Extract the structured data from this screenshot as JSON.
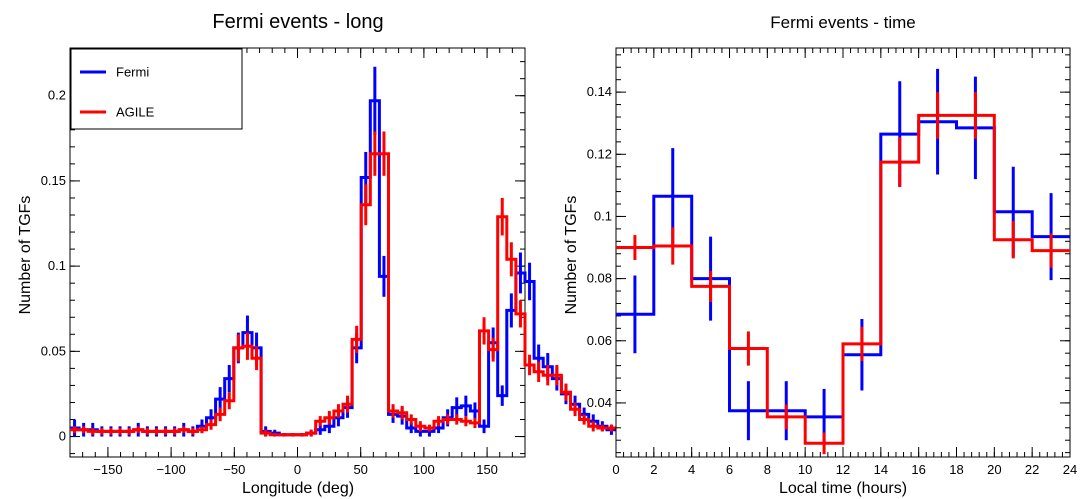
{
  "chart_data": [
    {
      "type": "histogram",
      "title": "Fermi events - long",
      "xlabel": "Longitude (deg)",
      "ylabel": "Number of TGFs",
      "xlim": [
        -180,
        180
      ],
      "ylim": [
        -0.012,
        0.228
      ],
      "xticks": [
        -150,
        -100,
        -50,
        0,
        50,
        100,
        150
      ],
      "xtick_labels": [
        "−150",
        "−100",
        "−50",
        "0",
        "50",
        "100",
        "150"
      ],
      "yticks": [
        0,
        0.05,
        0.1,
        0.15,
        0.2
      ],
      "ytick_labels": [
        "0",
        "0.05",
        "0.1",
        "0.15",
        "0.2"
      ],
      "bin_width": 7.2,
      "legend": {
        "placement": "top-left",
        "entries": [
          "Fermi",
          "AGILE"
        ]
      },
      "series": [
        {
          "name": "Fermi",
          "color": "#0000ff",
          "values": [
            0.005,
            0.004,
            0.004,
            0.003,
            0.003,
            0.003,
            0.003,
            0.004,
            0.003,
            0.003,
            0.003,
            0.003,
            0.004,
            0.003,
            0.006,
            0.011,
            0.022,
            0.034,
            0.052,
            0.061,
            0.052,
            0.003,
            0.002,
            0.001,
            0.001,
            0.001,
            0.002,
            0.004,
            0.006,
            0.011,
            0.017,
            0.052,
            0.152,
            0.197,
            0.094,
            0.013,
            0.012,
            0.005,
            0.003,
            0.003,
            0.005,
            0.011,
            0.017,
            0.018,
            0.015,
            0.006,
            0.055,
            0.024,
            0.074,
            0.096,
            0.091,
            0.046,
            0.041,
            0.034,
            0.025,
            0.019,
            0.013,
            0.009,
            0.006,
            0.004
          ],
          "errors": [
            0.005,
            0.004,
            0.004,
            0.003,
            0.003,
            0.003,
            0.003,
            0.004,
            0.003,
            0.003,
            0.003,
            0.003,
            0.004,
            0.003,
            0.004,
            0.005,
            0.007,
            0.008,
            0.009,
            0.01,
            0.009,
            0.003,
            0.002,
            0.001,
            0.001,
            0.001,
            0.002,
            0.003,
            0.004,
            0.005,
            0.006,
            0.009,
            0.015,
            0.02,
            0.012,
            0.005,
            0.005,
            0.003,
            0.003,
            0.003,
            0.003,
            0.005,
            0.006,
            0.006,
            0.005,
            0.004,
            0.009,
            0.006,
            0.01,
            0.012,
            0.011,
            0.008,
            0.008,
            0.007,
            0.006,
            0.005,
            0.004,
            0.004,
            0.003,
            0.003
          ]
        },
        {
          "name": "AGILE",
          "color": "#ff0000",
          "values": [
            0.004,
            0.004,
            0.003,
            0.003,
            0.003,
            0.003,
            0.003,
            0.004,
            0.003,
            0.003,
            0.003,
            0.003,
            0.004,
            0.003,
            0.004,
            0.007,
            0.013,
            0.021,
            0.052,
            0.053,
            0.046,
            0.002,
            0.001,
            0.001,
            0.001,
            0.001,
            0.002,
            0.009,
            0.011,
            0.015,
            0.019,
            0.057,
            0.136,
            0.166,
            0.166,
            0.015,
            0.014,
            0.01,
            0.006,
            0.005,
            0.009,
            0.01,
            0.01,
            0.009,
            0.008,
            0.062,
            0.051,
            0.129,
            0.104,
            0.072,
            0.042,
            0.038,
            0.036,
            0.036,
            0.026,
            0.016,
            0.01,
            0.006,
            0.005,
            0.005
          ],
          "errors": [
            0.002,
            0.002,
            0.002,
            0.002,
            0.002,
            0.002,
            0.002,
            0.002,
            0.002,
            0.002,
            0.002,
            0.002,
            0.002,
            0.002,
            0.002,
            0.003,
            0.004,
            0.005,
            0.008,
            0.008,
            0.007,
            0.002,
            0.001,
            0.001,
            0.001,
            0.001,
            0.002,
            0.003,
            0.004,
            0.004,
            0.005,
            0.008,
            0.012,
            0.013,
            0.013,
            0.004,
            0.004,
            0.003,
            0.003,
            0.002,
            0.003,
            0.003,
            0.003,
            0.003,
            0.003,
            0.008,
            0.007,
            0.011,
            0.01,
            0.008,
            0.006,
            0.006,
            0.006,
            0.006,
            0.005,
            0.004,
            0.003,
            0.003,
            0.002,
            0.002
          ]
        }
      ]
    },
    {
      "type": "histogram",
      "title": "Fermi events - time",
      "xlabel": "Local time (hours)",
      "ylabel": "Number of TGFs",
      "xlim": [
        0,
        24
      ],
      "ylim": [
        0.0226,
        0.1542
      ],
      "xticks": [
        0,
        2,
        4,
        6,
        8,
        10,
        12,
        14,
        16,
        18,
        20,
        22,
        24
      ],
      "xtick_labels": [
        "0",
        "2",
        "4",
        "6",
        "8",
        "10",
        "12",
        "14",
        "16",
        "18",
        "20",
        "22",
        "24"
      ],
      "yticks": [
        0.04,
        0.06,
        0.08,
        0.1,
        0.12,
        0.14
      ],
      "ytick_labels": [
        "0.04",
        "0.06",
        "0.08",
        "0.1",
        "0.12",
        "0.14"
      ],
      "bin_width": 2,
      "series": [
        {
          "name": "Fermi",
          "color": "#0000ff",
          "values": [
            0.0685,
            0.1065,
            0.08,
            0.0375,
            0.0375,
            0.0355,
            0.0555,
            0.1265,
            0.1305,
            0.1285,
            0.1015,
            0.0935
          ],
          "errors": [
            0.0125,
            0.0155,
            0.0135,
            0.0095,
            0.0095,
            0.009,
            0.0115,
            0.017,
            0.017,
            0.0165,
            0.0145,
            0.014
          ]
        },
        {
          "name": "AGILE",
          "color": "#ff0000",
          "values": [
            0.09,
            0.0905,
            0.0775,
            0.0575,
            0.0355,
            0.027,
            0.059,
            0.1175,
            0.1325,
            0.1325,
            0.0925,
            0.089
          ],
          "errors": [
            0.004,
            0.006,
            0.005,
            0.0055,
            0.004,
            0.0035,
            0.0055,
            0.008,
            0.0075,
            0.0075,
            0.006,
            0.0055
          ]
        }
      ]
    }
  ]
}
